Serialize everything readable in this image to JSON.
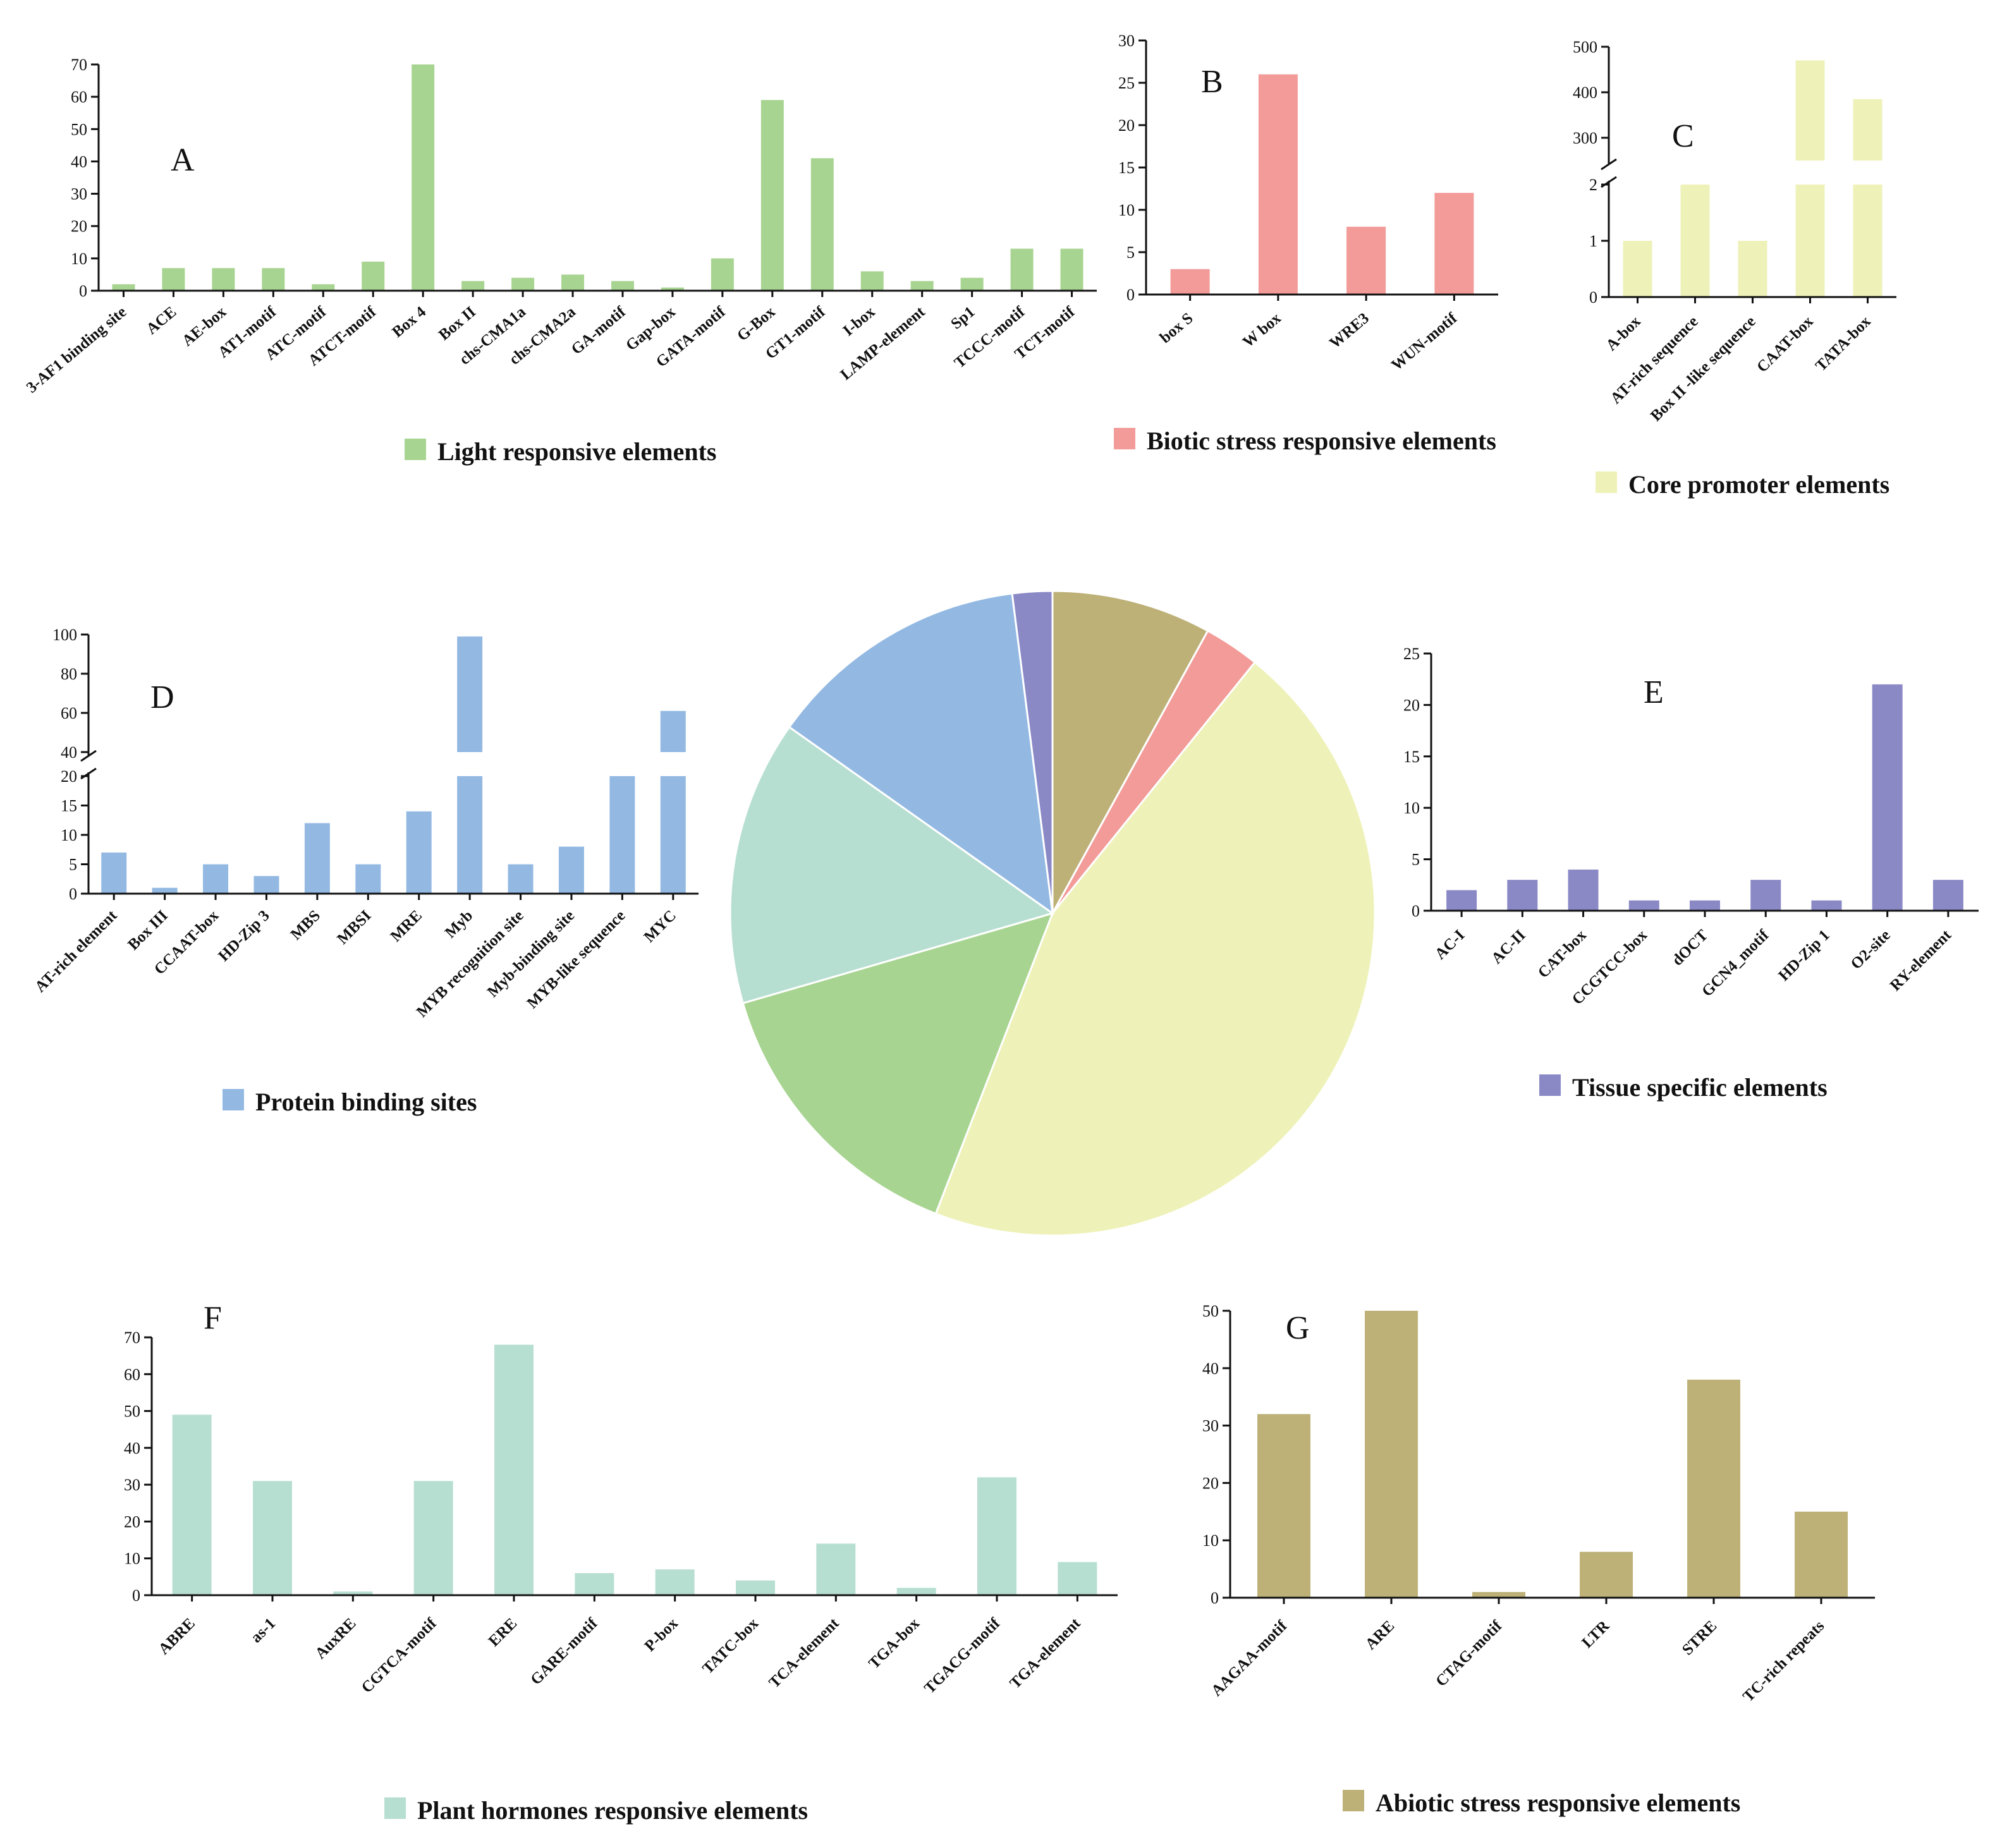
{
  "chart_data": [
    {
      "id": "A",
      "type": "bar",
      "panel_label": "A",
      "legend": "Light responsive elements",
      "color": "#a8d491",
      "categories": [
        "3-AF1 binding site",
        "ACE",
        "AE-box",
        "AT1-motif",
        "ATC-motif",
        "ATCT-motif",
        "Box 4",
        "Box II",
        "chs-CMA1a",
        "chs-CMA2a",
        "GA-motif",
        "Gap-box",
        "GATA-motif",
        "G-Box",
        "GT1-motif",
        "I-box",
        "LAMP-element",
        "Sp1",
        "TCCC-motif",
        "TCT-motif"
      ],
      "values": [
        2,
        7,
        7,
        7,
        2,
        9,
        70,
        3,
        4,
        5,
        3,
        1,
        10,
        59,
        41,
        6,
        3,
        4,
        13,
        13
      ],
      "ylim": [
        0,
        70
      ],
      "yticks": [
        0,
        10,
        20,
        30,
        40,
        50,
        60,
        70
      ]
    },
    {
      "id": "B",
      "type": "bar",
      "panel_label": "B",
      "legend": "Biotic stress responsive elements",
      "color": "#f29b98",
      "categories": [
        "box S",
        "W box",
        "WRE3",
        "WUN-motif"
      ],
      "values": [
        3,
        26,
        8,
        12
      ],
      "ylim": [
        0,
        30
      ],
      "yticks": [
        0,
        5,
        10,
        15,
        20,
        25,
        30
      ]
    },
    {
      "id": "C",
      "type": "bar",
      "panel_label": "C",
      "broken_axis": true,
      "legend": "Core promoter elements",
      "color": "#eef2b8",
      "categories": [
        "A-box",
        "AT-rich sequence",
        "Box II -like sequence",
        "CAAT-box",
        "TATA-box"
      ],
      "values": [
        1,
        2,
        1,
        470,
        385
      ],
      "lower_ylim": [
        0,
        2
      ],
      "lower_yticks": [
        0,
        1,
        2
      ],
      "upper_ylim": [
        250,
        500
      ],
      "upper_yticks": [
        300,
        400,
        500
      ]
    },
    {
      "id": "D",
      "type": "bar",
      "panel_label": "D",
      "broken_axis": true,
      "legend": "Protein binding sites",
      "color": "#93b9e3",
      "categories": [
        "AT-rich element",
        "Box III",
        "CCAAT-box",
        "HD-Zip 3",
        "MBS",
        "MBSI",
        "MRE",
        "Myb",
        "MYB recognition site",
        "Myb-binding site",
        "MYB-like sequence",
        "MYC"
      ],
      "values": [
        7,
        1,
        5,
        3,
        12,
        5,
        14,
        99,
        5,
        8,
        20,
        61
      ],
      "lower_ylim": [
        0,
        20
      ],
      "lower_yticks": [
        0,
        5,
        10,
        15,
        20
      ],
      "upper_ylim": [
        40,
        100
      ],
      "upper_yticks": [
        40,
        60,
        80,
        100
      ]
    },
    {
      "id": "E",
      "type": "bar",
      "panel_label": "E",
      "legend": "Tissue specific elements",
      "color": "#8a89c6",
      "categories": [
        "AC-I",
        "AC-II",
        "CAT-box",
        "CCGTCC-box",
        "dOCT",
        "GCN4_motif",
        "HD-Zip 1",
        "O2-site",
        "RY-element"
      ],
      "values": [
        2,
        3,
        4,
        1,
        1,
        3,
        1,
        22,
        3
      ],
      "ylim": [
        0,
        25
      ],
      "yticks": [
        0,
        5,
        10,
        15,
        20,
        25
      ]
    },
    {
      "id": "F",
      "type": "bar",
      "panel_label": "F",
      "legend": "Plant hormones responsive elements",
      "color": "#b7dfd1",
      "categories": [
        "ABRE",
        "as-1",
        "AuxRE",
        "CGTCA-motif",
        "ERE",
        "GARE-motif",
        "P-box",
        "TATC-box",
        "TCA-element",
        "TGA-box",
        "TGACG-motif",
        "TGA-element"
      ],
      "values": [
        49,
        31,
        1,
        31,
        68,
        6,
        7,
        4,
        14,
        2,
        32,
        9
      ],
      "ylim": [
        0,
        70
      ],
      "yticks": [
        0,
        10,
        20,
        30,
        40,
        50,
        60,
        70
      ]
    },
    {
      "id": "G",
      "type": "bar",
      "panel_label": "G",
      "legend": "Abiotic stress responsive elements",
      "color": "#bdb178",
      "categories": [
        "AAGAA-motif",
        "ARE",
        "CTAG-motif",
        "LTR",
        "STRE",
        "TC-rich repeats"
      ],
      "values": [
        32,
        50,
        1,
        8,
        38,
        15
      ],
      "ylim": [
        0,
        50
      ],
      "yticks": [
        0,
        10,
        20,
        30,
        40,
        50
      ]
    },
    {
      "id": "pie",
      "type": "pie",
      "slices": [
        {
          "group": "Abiotic stress responsive elements",
          "value": 8.0,
          "color": "#bdb178"
        },
        {
          "group": "Biotic stress responsive elements",
          "value": 2.8,
          "color": "#f29b98"
        },
        {
          "group": "Core promoter elements",
          "value": 45.1,
          "color": "#eef2b8"
        },
        {
          "group": "Light responsive elements",
          "value": 14.6,
          "color": "#a8d491"
        },
        {
          "group": "Plant hormones responsive elements",
          "value": 14.3,
          "color": "#b7dfd1"
        },
        {
          "group": "Protein binding sites",
          "value": 13.2,
          "color": "#93b9e3"
        },
        {
          "group": "Tissue specific elements",
          "value": 2.0,
          "color": "#8a89c6"
        }
      ]
    }
  ]
}
